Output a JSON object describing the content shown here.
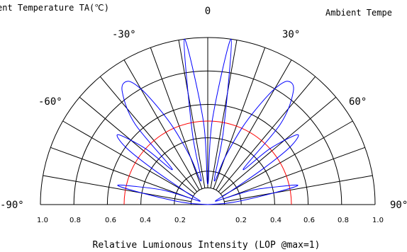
{
  "header": {
    "left_text": "ent Temperature TA(℃)",
    "right_text": "Ambient Tempe"
  },
  "chart_data": {
    "type": "polar",
    "xlabel": "Relative Lumionous Intensity (LOP @max=1)",
    "radial_ticks": [
      "1.0",
      "0.8",
      "0.6",
      "0.4",
      "0.2",
      "0.2",
      "0.4",
      "0.6",
      "0.8",
      "1.0"
    ],
    "angle_labels": [
      "-90°",
      "-60°",
      "-30°",
      "0",
      "30°",
      "60°",
      "90°"
    ],
    "angle_range": [
      -90,
      90
    ],
    "radial_range": [
      0,
      1.0
    ],
    "grid": true,
    "series": [
      {
        "color": "#ff0000",
        "angles": [
          -90,
          -75,
          -60,
          -45,
          -30,
          -15,
          0,
          15,
          30,
          45,
          60,
          75,
          90
        ],
        "values": [
          0.5,
          0.5,
          0.5,
          0.5,
          0.5,
          0.5,
          0.5,
          0.5,
          0.5,
          0.5,
          0.5,
          0.5,
          0.5
        ]
      },
      {
        "color": "#0000ff",
        "angles": [
          -90,
          -85,
          -80,
          -78,
          -76,
          -72,
          -70,
          -65,
          -60,
          -57,
          -55,
          -52,
          -48,
          -45,
          -42,
          -37,
          -33,
          -30,
          -27,
          -24,
          -20,
          -15,
          -12,
          -8,
          -3,
          0,
          3,
          8,
          12,
          15,
          20,
          24,
          27,
          30,
          33,
          37,
          42,
          45,
          48,
          52,
          55,
          57,
          60,
          65,
          70,
          72,
          76,
          78,
          80,
          85,
          90
        ],
        "values": [
          0.0,
          0.15,
          0.4,
          0.55,
          0.45,
          0.28,
          0.12,
          0.05,
          0.15,
          0.4,
          0.6,
          0.68,
          0.5,
          0.3,
          0.65,
          0.85,
          0.88,
          0.8,
          0.65,
          0.5,
          0.3,
          0.15,
          0.45,
          1.0,
          0.5,
          0.12,
          0.5,
          1.0,
          0.45,
          0.15,
          0.3,
          0.5,
          0.65,
          0.8,
          0.88,
          0.85,
          0.65,
          0.3,
          0.5,
          0.68,
          0.6,
          0.4,
          0.15,
          0.05,
          0.12,
          0.28,
          0.45,
          0.55,
          0.4,
          0.15,
          0.0
        ]
      }
    ]
  }
}
